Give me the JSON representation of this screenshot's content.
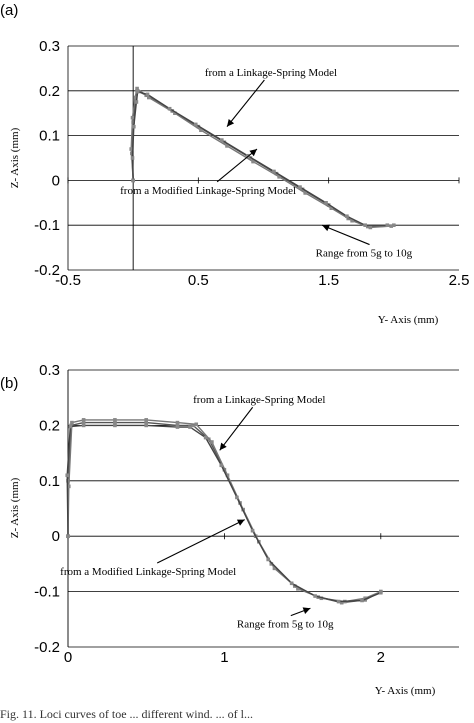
{
  "chart_data": [
    {
      "type": "line",
      "panel_label": "(a)",
      "xlabel": "Y- Axis (mm)",
      "ylabel": "Z- Axis (mm)",
      "xlim": [
        -0.5,
        2.5
      ],
      "ylim": [
        -0.2,
        0.3
      ],
      "xticks": [
        "-0.5",
        "0.5",
        "1.5",
        "2.5"
      ],
      "xtick_values": [
        -0.5,
        0.5,
        1.5,
        2.5
      ],
      "yticks": [
        "0.3",
        "0.2",
        "0.1",
        "0",
        "-0.1",
        "-0.2"
      ],
      "ytick_values": [
        0.3,
        0.2,
        0.1,
        0,
        -0.1,
        -0.2
      ],
      "grid": "horizontal",
      "annotations": [
        {
          "text": "from a Linkage-Spring Model",
          "x": 0.55,
          "y": 0.233,
          "arrow_to": [
            0.72,
            0.12
          ]
        },
        {
          "text": "from a Modified Linkage-Spring Model",
          "x": -0.1,
          "y": -0.03,
          "arrow_to": [
            0.95,
            0.07
          ]
        },
        {
          "text": "Range from 5g to 10g",
          "x": 1.4,
          "y": -0.17,
          "arrow_to": [
            1.45,
            -0.1
          ]
        }
      ],
      "series": [
        {
          "values": [
            [
              0.0,
              0.0
            ],
            [
              -0.01,
              0.06
            ],
            [
              0.0,
              0.13
            ],
            [
              0.02,
              0.18
            ],
            [
              0.03,
              0.2
            ],
            [
              0.1,
              0.19
            ],
            [
              0.3,
              0.155
            ],
            [
              0.5,
              0.12
            ],
            [
              0.7,
              0.085
            ],
            [
              0.9,
              0.05
            ],
            [
              1.1,
              0.015
            ],
            [
              1.3,
              -0.02
            ],
            [
              1.5,
              -0.055
            ],
            [
              1.65,
              -0.085
            ],
            [
              1.8,
              -0.103
            ],
            [
              2.0,
              -0.1
            ]
          ]
        },
        {
          "values": [
            [
              0.0,
              0.0
            ],
            [
              -0.015,
              0.07
            ],
            [
              -0.005,
              0.14
            ],
            [
              0.015,
              0.185
            ],
            [
              0.03,
              0.205
            ],
            [
              0.12,
              0.185
            ],
            [
              0.32,
              0.15
            ],
            [
              0.52,
              0.112
            ],
            [
              0.72,
              0.077
            ],
            [
              0.92,
              0.042
            ],
            [
              1.12,
              0.008
            ],
            [
              1.32,
              -0.028
            ],
            [
              1.52,
              -0.062
            ],
            [
              1.68,
              -0.09
            ],
            [
              1.82,
              -0.105
            ],
            [
              1.98,
              -0.102
            ]
          ]
        },
        {
          "values": [
            [
              0.0,
              0.0
            ],
            [
              -0.005,
              0.05
            ],
            [
              0.005,
              0.12
            ],
            [
              0.025,
              0.175
            ],
            [
              0.035,
              0.198
            ],
            [
              0.11,
              0.192
            ],
            [
              0.28,
              0.16
            ],
            [
              0.48,
              0.125
            ],
            [
              0.68,
              0.09
            ],
            [
              0.88,
              0.055
            ],
            [
              1.08,
              0.02
            ],
            [
              1.28,
              -0.015
            ],
            [
              1.48,
              -0.05
            ],
            [
              1.64,
              -0.08
            ],
            [
              1.78,
              -0.1
            ],
            [
              1.95,
              -0.1
            ]
          ]
        }
      ]
    },
    {
      "type": "line",
      "panel_label": "(b)",
      "xlabel": "Y- Axis (mm)",
      "ylabel": "Z- Axis (mm)",
      "xlim": [
        0,
        2.5
      ],
      "ylim": [
        -0.2,
        0.3
      ],
      "xticks": [
        "0",
        "1",
        "2"
      ],
      "xtick_values": [
        0,
        1,
        2
      ],
      "yticks": [
        "0.3",
        "0.2",
        "0.1",
        "0",
        "-0.1",
        "-0.2"
      ],
      "ytick_values": [
        0.3,
        0.2,
        0.1,
        0,
        -0.1,
        -0.2
      ],
      "grid": "horizontal",
      "annotations": [
        {
          "text": "from a Linkage-Spring Model",
          "x": 0.8,
          "y": 0.24,
          "arrow_to": [
            0.97,
            0.155
          ]
        },
        {
          "text": "from a Modified Linkage-Spring Model",
          "x": -0.05,
          "y": -0.07,
          "arrow_to": [
            1.13,
            0.03
          ]
        },
        {
          "text": "Range from 5g to 10g",
          "x": 1.08,
          "y": -0.165,
          "arrow_to": [
            1.55,
            -0.13
          ]
        }
      ],
      "series": [
        {
          "values": [
            [
              0.0,
              0.0
            ],
            [
              0.0,
              0.1
            ],
            [
              0.02,
              0.2
            ],
            [
              0.1,
              0.205
            ],
            [
              0.3,
              0.205
            ],
            [
              0.5,
              0.205
            ],
            [
              0.7,
              0.2
            ],
            [
              0.8,
              0.2
            ],
            [
              0.9,
              0.175
            ],
            [
              1.0,
              0.12
            ],
            [
              1.1,
              0.06
            ],
            [
              1.2,
              0.0
            ],
            [
              1.3,
              -0.05
            ],
            [
              1.45,
              -0.09
            ],
            [
              1.6,
              -0.11
            ],
            [
              1.75,
              -0.12
            ],
            [
              1.9,
              -0.115
            ],
            [
              2.0,
              -0.1
            ]
          ]
        },
        {
          "values": [
            [
              0.0,
              0.0
            ],
            [
              0.005,
              0.09
            ],
            [
              0.025,
              0.205
            ],
            [
              0.1,
              0.21
            ],
            [
              0.3,
              0.21
            ],
            [
              0.5,
              0.21
            ],
            [
              0.7,
              0.205
            ],
            [
              0.82,
              0.202
            ],
            [
              0.92,
              0.17
            ],
            [
              1.02,
              0.11
            ],
            [
              1.12,
              0.048
            ],
            [
              1.22,
              -0.01
            ],
            [
              1.32,
              -0.058
            ],
            [
              1.47,
              -0.095
            ],
            [
              1.62,
              -0.112
            ],
            [
              1.77,
              -0.118
            ],
            [
              1.9,
              -0.112
            ],
            [
              2.0,
              -0.1
            ]
          ]
        },
        {
          "values": [
            [
              0.0,
              0.0
            ],
            [
              -0.005,
              0.11
            ],
            [
              0.015,
              0.198
            ],
            [
              0.1,
              0.2
            ],
            [
              0.3,
              0.2
            ],
            [
              0.5,
              0.2
            ],
            [
              0.7,
              0.197
            ],
            [
              0.78,
              0.197
            ],
            [
              0.88,
              0.178
            ],
            [
              0.98,
              0.128
            ],
            [
              1.08,
              0.07
            ],
            [
              1.18,
              0.01
            ],
            [
              1.28,
              -0.042
            ],
            [
              1.43,
              -0.085
            ],
            [
              1.58,
              -0.108
            ],
            [
              1.73,
              -0.118
            ],
            [
              1.88,
              -0.116
            ],
            [
              2.0,
              -0.102
            ]
          ]
        }
      ]
    }
  ],
  "caption": "Fig. 11. Loci curves of toe ... different wind. ... of l..."
}
